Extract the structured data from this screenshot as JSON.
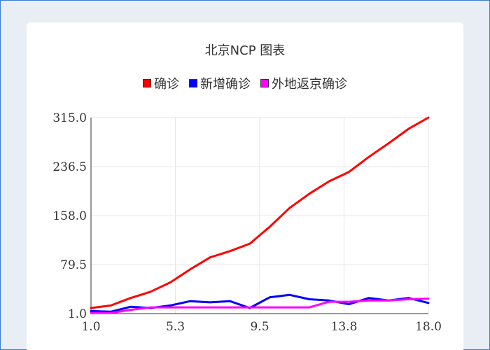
{
  "chart_data": {
    "type": "line",
    "title": "北京NCP 图表",
    "xlabel": "",
    "ylabel": "",
    "xlim": [
      1.0,
      18.0
    ],
    "ylim": [
      1.0,
      315.0
    ],
    "x_ticks": [
      "1.0",
      "5.3",
      "9.5",
      "13.8",
      "18.0"
    ],
    "y_ticks": [
      "315.0",
      "236.5",
      "158.0",
      "79.5",
      "1.0"
    ],
    "x_tick_values": [
      1.0,
      5.25,
      9.5,
      13.75,
      18.0
    ],
    "y_tick_values": [
      315.0,
      236.5,
      158.0,
      79.5,
      1.0
    ],
    "grid": true,
    "legend_position": "top-center",
    "x": [
      1,
      2,
      3,
      4,
      5,
      6,
      7,
      8,
      9,
      10,
      11,
      12,
      13,
      14,
      15,
      16,
      17,
      18
    ],
    "series": [
      {
        "name": "确诊",
        "color": "#ff0000",
        "values": [
          10,
          14,
          26,
          36,
          51,
          72,
          91,
          101,
          113,
          140,
          170,
          193,
          213,
          228,
          252,
          274,
          297,
          315
        ]
      },
      {
        "name": "新增确诊",
        "color": "#0000ff",
        "values": [
          5,
          4,
          12,
          10,
          14,
          21,
          19,
          21,
          10,
          27,
          31,
          24,
          22,
          16,
          26,
          22,
          26,
          18
        ]
      },
      {
        "name": "外地返京确诊",
        "color": "#ff00ff",
        "values": [
          2,
          2,
          7,
          11,
          11,
          11,
          11,
          11,
          11,
          11,
          11,
          11,
          20,
          20,
          22,
          22,
          24,
          25
        ]
      }
    ]
  }
}
